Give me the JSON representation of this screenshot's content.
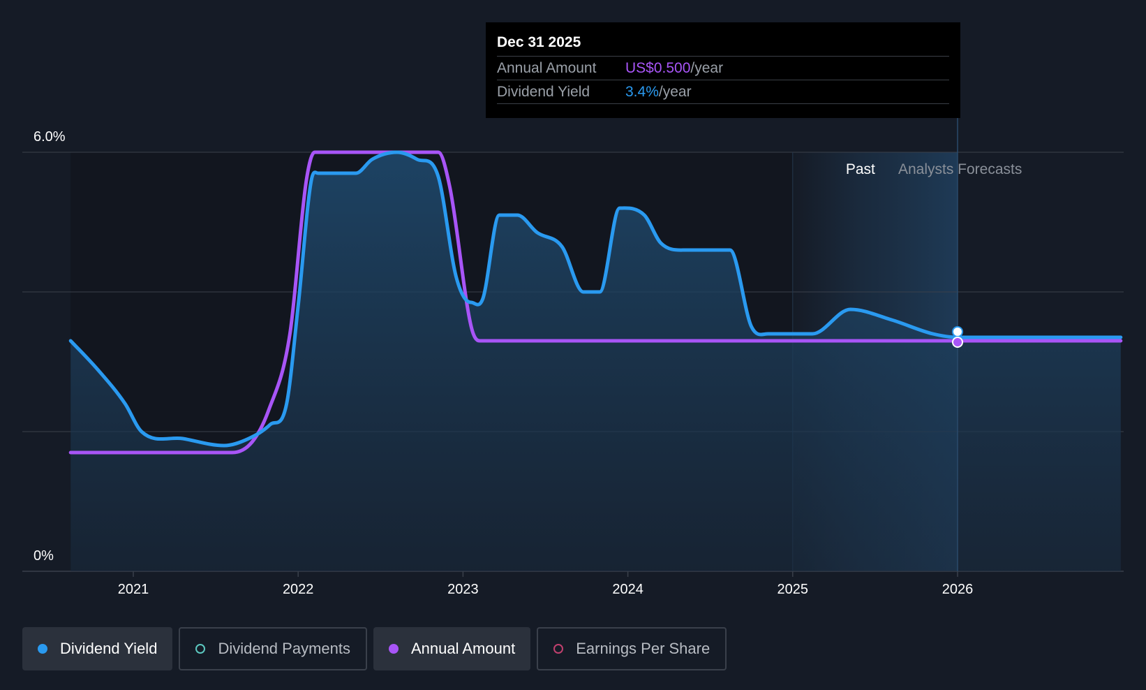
{
  "tooltip": {
    "date": "Dec 31 2025",
    "rows": [
      {
        "label": "Annual Amount",
        "value": "US$0.500",
        "unit": "/year"
      },
      {
        "label": "Dividend Yield",
        "value": "3.4%",
        "unit": "/year"
      }
    ]
  },
  "legend": [
    {
      "label": "Dividend Yield",
      "color": "#2a9af0",
      "filled": true,
      "active": true
    },
    {
      "label": "Dividend Payments",
      "color": "#5cc8c0",
      "filled": false,
      "active": false
    },
    {
      "label": "Annual Amount",
      "color": "#a855f7",
      "filled": true,
      "active": true
    },
    {
      "label": "Earnings Per Share",
      "color": "#c0406e",
      "filled": false,
      "active": false
    }
  ],
  "colors": {
    "yield": "#2a9af0",
    "amount": "#a855f7",
    "grid": "#3a404b",
    "background": "#151b26"
  },
  "chart_data": {
    "type": "line",
    "ylim": [
      0,
      6
    ],
    "y_tick_labels": [
      "6.0%",
      "0%"
    ],
    "x_tick_labels": [
      "2021",
      "2022",
      "2023",
      "2024",
      "2025",
      "2026"
    ],
    "regions": {
      "past": "Past",
      "forecast": "Analysts Forecasts"
    },
    "series": [
      {
        "name": "Dividend Yield",
        "x": [
          2020.62,
          2020.78,
          2020.95,
          2021.05,
          2021.3,
          2021.55,
          2021.7,
          2021.83,
          2021.93,
          2022.0,
          2022.08,
          2022.12,
          2022.2,
          2022.35,
          2022.45,
          2022.6,
          2022.72,
          2022.85,
          2022.96,
          2023.05,
          2023.12,
          2023.22,
          2023.33,
          2023.45,
          2023.6,
          2023.73,
          2023.83,
          2023.95,
          2024.1,
          2024.2,
          2024.35,
          2024.62,
          2024.75,
          2024.85,
          2025.12,
          2025.35,
          2025.6,
          2025.85,
          2026.0,
          2026.99
        ],
        "values": [
          3.3,
          2.9,
          2.4,
          2.0,
          1.9,
          1.8,
          1.9,
          2.1,
          2.4,
          3.8,
          5.6,
          5.7,
          5.7,
          5.7,
          5.9,
          6.0,
          5.9,
          5.65,
          4.2,
          3.85,
          3.9,
          5.1,
          5.1,
          4.85,
          4.65,
          4.0,
          4.0,
          5.2,
          5.1,
          4.7,
          4.6,
          4.6,
          3.5,
          3.4,
          3.4,
          3.75,
          3.6,
          3.4,
          3.35,
          3.35
        ]
      },
      {
        "name": "Annual Amount",
        "x": [
          2020.62,
          2021.6,
          2021.72,
          2021.82,
          2021.95,
          2022.05,
          2022.1,
          2022.85,
          2022.92,
          2023.05,
          2023.1,
          2026.99
        ],
        "values": [
          1.7,
          1.7,
          1.85,
          2.3,
          3.4,
          5.6,
          6.0,
          6.0,
          5.5,
          3.5,
          3.3,
          3.3
        ]
      }
    ],
    "highlight": {
      "x": 2026.0,
      "yield": 3.4,
      "annual_amount": 0.5
    }
  }
}
